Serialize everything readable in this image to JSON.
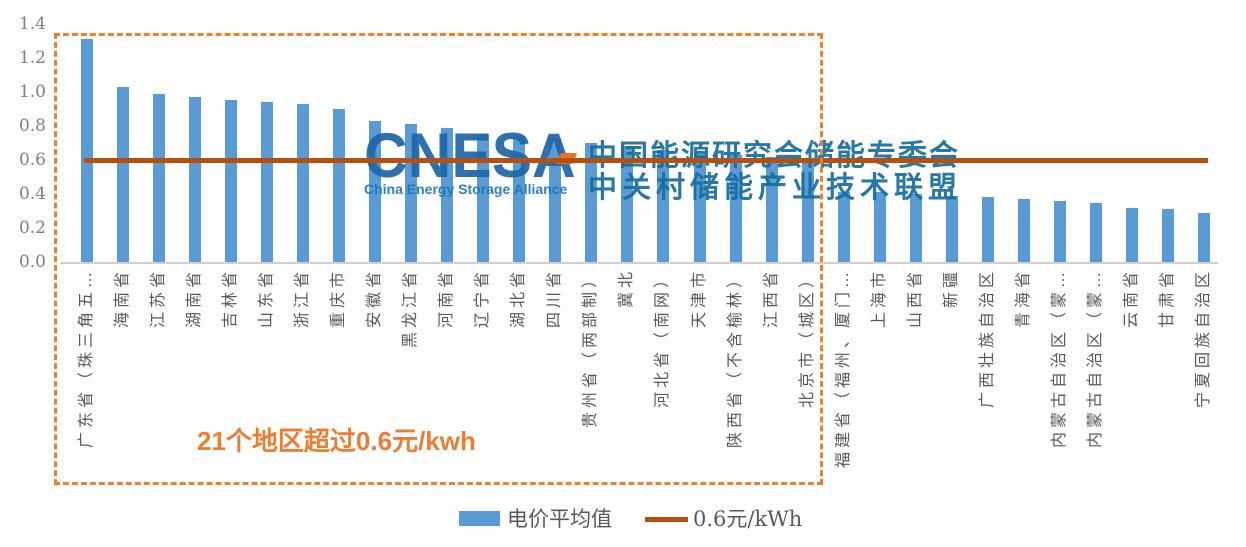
{
  "chart_data": {
    "type": "bar",
    "title": "",
    "categories": [
      "广东省（珠三角五…",
      "海南省",
      "江苏省",
      "湖南省",
      "吉林省",
      "山东省",
      "浙江省",
      "重庆市",
      "安徽省",
      "黑龙江省",
      "河南省",
      "辽宁省",
      "湖北省",
      "四川省",
      "贵州省（两部制）",
      "冀北",
      "河北省（南网）",
      "天津市",
      "陕西省（不含榆林）",
      "江西省",
      "北京市（城区）",
      "福建省（福州、厦门…",
      "上海市",
      "山西省",
      "新疆",
      "广西壮族自治区",
      "青海省",
      "内蒙古自治区（蒙…",
      "内蒙古自治区（蒙…",
      "云南省",
      "甘肃省",
      "宁夏回族自治区"
    ],
    "series": [
      {
        "name": "电价平均值",
        "type": "bar",
        "color": "#5B9BD5",
        "values": [
          1.31,
          1.03,
          0.99,
          0.97,
          0.95,
          0.94,
          0.93,
          0.9,
          0.83,
          0.81,
          0.79,
          0.75,
          0.74,
          0.73,
          0.7,
          0.68,
          0.66,
          0.64,
          0.63,
          0.62,
          0.61,
          0.41,
          0.41,
          0.4,
          0.39,
          0.38,
          0.37,
          0.36,
          0.35,
          0.32,
          0.31,
          0.29
        ]
      },
      {
        "name": "0.6元/kWh",
        "type": "line",
        "color": "#B5500F",
        "value": 0.6
      }
    ],
    "xlabel": "",
    "ylabel": "",
    "ylim": [
      0,
      1.4
    ],
    "yticks": [
      "0.0",
      "0.2",
      "0.4",
      "0.6",
      "0.8",
      "1.0",
      "1.2",
      "1.4"
    ],
    "grid": false,
    "legend_position": "bottom"
  },
  "annotation": {
    "text": "21个地区超过0.6元/kwh",
    "color": "#ED7D31",
    "regions_in_box": 21
  },
  "highlight_box": {
    "color": "#F0802B",
    "style": "dashed",
    "encloses_first_n_bars": 21
  },
  "watermark": {
    "logo": "CNESA",
    "subtitle": "China Energy Storage Alliance",
    "cn_line1": "中国能源研究会储能专委会",
    "cn_line2": "中关村储能产业技术联盟",
    "logo_color": "#1D66A8",
    "accent_color": "#E8680F"
  },
  "legend": [
    {
      "label": "电价平均值",
      "swatch": "bar",
      "color": "#5B9BD5"
    },
    {
      "label": "0.6元/kWh",
      "swatch": "line",
      "color": "#B5500F"
    }
  ],
  "colors": {
    "bar": "#5B9BD5",
    "ref_line": "#B5500F",
    "box": "#F0802B",
    "annotation": "#ED7D31",
    "axis_text": "#7f7f7f",
    "label_text": "#595959"
  }
}
